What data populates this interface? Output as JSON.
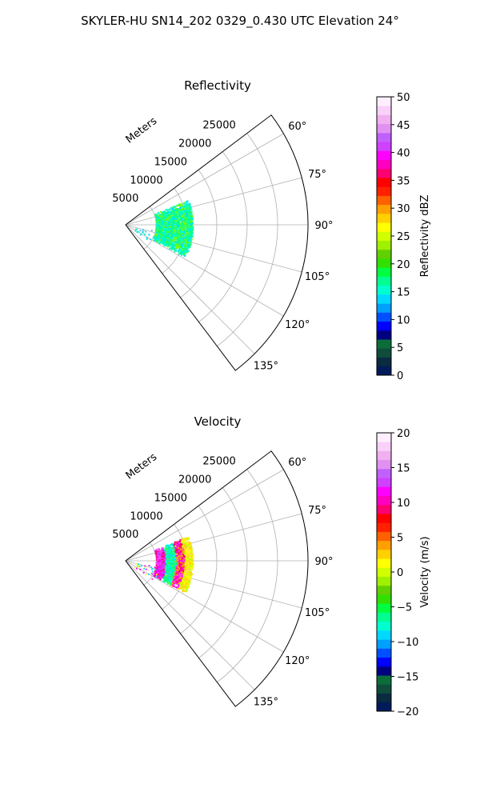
{
  "suptitle": "SKYLER-HU  SN14_202  0329_0.430 UTC Elevation 24°",
  "chart_data": [
    {
      "type": "polar-sector",
      "title": "Reflectivity",
      "radial_label": "Meters",
      "theta_range_deg": [
        53,
        143
      ],
      "r_max": 30000,
      "r_ticks": [
        5000,
        10000,
        15000,
        20000,
        25000
      ],
      "r_tick_labels": [
        "5000",
        "10000",
        "15000",
        "20000",
        "25000"
      ],
      "theta_ticks": [
        60,
        75,
        90,
        105,
        120,
        135
      ],
      "theta_tick_labels": [
        "60°",
        "75°",
        "90°",
        "105°",
        "120°",
        "135°"
      ],
      "grid": true,
      "colorbar": {
        "label": "Reflectivity dBZ",
        "min": 0,
        "max": 50,
        "ticks": [
          0,
          5,
          10,
          15,
          20,
          25,
          30,
          35,
          40,
          45,
          50
        ],
        "tick_labels": [
          "0",
          "5",
          "10",
          "15",
          "20",
          "25",
          "30",
          "35",
          "40",
          "45",
          "50"
        ],
        "colormap": [
          "#001a5c",
          "#0a2a40",
          "#0f4c3a",
          "#0b6e3a",
          "#000080",
          "#0000ff",
          "#0050ff",
          "#00a0ff",
          "#00d8ff",
          "#00ffd0",
          "#00ff90",
          "#00ff40",
          "#30e000",
          "#60d000",
          "#a0f000",
          "#d0ff00",
          "#ffff00",
          "#ffd000",
          "#ffa000",
          "#ff6000",
          "#ff2000",
          "#ff0000",
          "#ff0070",
          "#ff00c0",
          "#ff00ff",
          "#d040ff",
          "#c060ff",
          "#e090f0",
          "#f0b0f0",
          "#f8d0f8",
          "#ffeeff"
        ]
      },
      "echo_region": {
        "r_range": [
          5000,
          11000
        ],
        "theta_range_deg": [
          68,
          118
        ]
      },
      "echo_colors": [
        "#00ff80",
        "#00ffb0",
        "#40ff40",
        "#00e0ff",
        "#80ff00",
        "#00ffd0"
      ],
      "sparse_colors": [
        "#00e0ff",
        "#00ffd0",
        "#40c0ff"
      ]
    },
    {
      "type": "polar-sector",
      "title": "Velocity",
      "radial_label": "Meters",
      "theta_range_deg": [
        53,
        143
      ],
      "r_max": 30000,
      "r_ticks": [
        5000,
        10000,
        15000,
        20000,
        25000
      ],
      "r_tick_labels": [
        "5000",
        "10000",
        "15000",
        "20000",
        "25000"
      ],
      "theta_ticks": [
        60,
        75,
        90,
        105,
        120,
        135
      ],
      "theta_tick_labels": [
        "60°",
        "75°",
        "90°",
        "105°",
        "120°",
        "135°"
      ],
      "grid": true,
      "colorbar": {
        "label": "Velocity (m/s)",
        "min": -20,
        "max": 20,
        "ticks": [
          -20,
          -15,
          -10,
          -5,
          0,
          5,
          10,
          15,
          20
        ],
        "tick_labels": [
          "−20",
          "−15",
          "−10",
          "−5",
          "0",
          "5",
          "10",
          "15",
          "20"
        ],
        "colormap": [
          "#001a5c",
          "#0a2a40",
          "#0f4c3a",
          "#0b6e3a",
          "#000080",
          "#0000ff",
          "#0050ff",
          "#00a0ff",
          "#00d8ff",
          "#00ffd0",
          "#00ff90",
          "#00ff40",
          "#30e000",
          "#60d000",
          "#a0f000",
          "#d0ff00",
          "#ffff00",
          "#ffd000",
          "#ffa000",
          "#ff6000",
          "#ff2000",
          "#ff0000",
          "#ff0070",
          "#ff00c0",
          "#ff00ff",
          "#d040ff",
          "#c060ff",
          "#e090f0",
          "#f0b0f0",
          "#f8d0f8",
          "#ffeeff"
        ]
      },
      "echo_region": {
        "r_range": [
          5000,
          11000
        ],
        "theta_range_deg": [
          68,
          118
        ]
      },
      "echo_bands": [
        {
          "r_range": [
            5000,
            6500
          ],
          "colors": [
            "#ff00ff",
            "#c040ff",
            "#ff40ff",
            "#ff0080"
          ]
        },
        {
          "r_range": [
            6500,
            8200
          ],
          "colors": [
            "#00ffd0",
            "#00e0ff",
            "#40ff40",
            "#00ff80"
          ]
        },
        {
          "r_range": [
            8200,
            9600
          ],
          "colors": [
            "#ff00ff",
            "#ff0060",
            "#ffa000",
            "#ff40c0"
          ]
        },
        {
          "r_range": [
            9600,
            11000
          ],
          "colors": [
            "#ffff00",
            "#ffd000",
            "#c0ff00",
            "#ffe040"
          ]
        }
      ],
      "sparse_colors": [
        "#ff00ff",
        "#00e0ff",
        "#ffff00"
      ]
    }
  ]
}
